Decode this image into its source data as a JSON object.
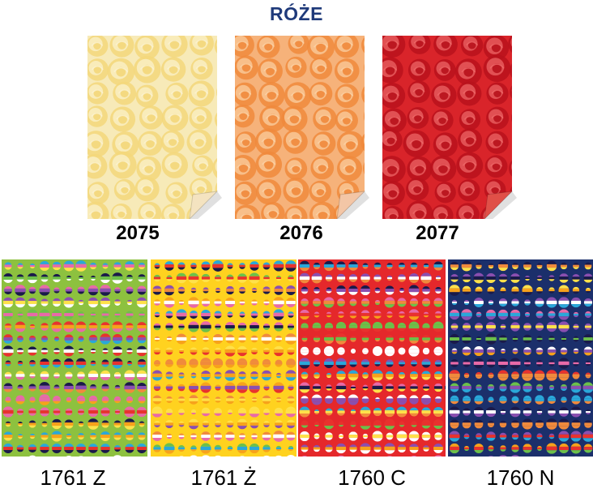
{
  "header": {
    "title": "RÓŻE",
    "title_color": "#1f3a7a"
  },
  "roses": [
    {
      "code": "2075",
      "base": "#f7eab8",
      "petal": "#f3d77a",
      "light": "#fbf3d2",
      "back": "#f4e3c0"
    },
    {
      "code": "2076",
      "base": "#f6b27a",
      "petal": "#f08a3c",
      "light": "#fbd3a8",
      "back": "#f3c6a6"
    },
    {
      "code": "2077",
      "base": "#d9242a",
      "petal": "#b8121c",
      "light": "#f06a6a",
      "back": "#e05048"
    }
  ],
  "dots": [
    {
      "code": "1761 Z",
      "bg": "#8dc13f"
    },
    {
      "code": "1761 Ż",
      "bg": "#ffd21f"
    },
    {
      "code": "1760 C",
      "bg": "#e5282b"
    },
    {
      "code": "1760 N",
      "bg": "#1b2f6b"
    }
  ],
  "stripe_palette": [
    "#e8322e",
    "#f7a21b",
    "#ffe14a",
    "#6cc04a",
    "#2aa7d9",
    "#1a1a4a",
    "#e86aa8",
    "#ffffff",
    "#8a4fb0",
    "#f08a3c"
  ]
}
